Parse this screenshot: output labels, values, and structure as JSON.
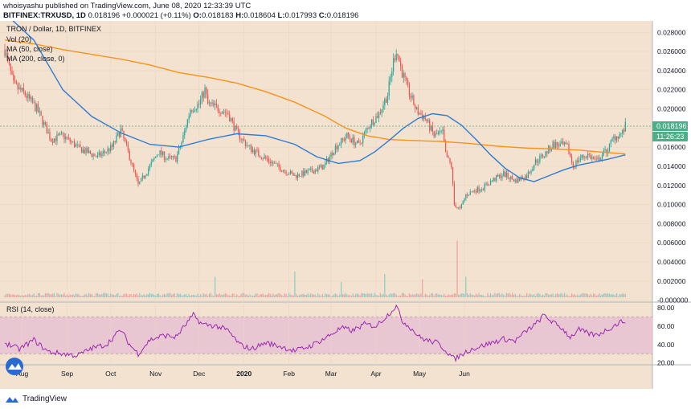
{
  "header": {
    "published_line": "whoisyashu published on TradingView.com, June 08, 2020 12:33:39 UTC",
    "symbol": "BITFINEX:TRXUSD, 1D",
    "last": "0.018196",
    "change": "+0.000021 (+0.11%)",
    "open_label": "O:",
    "open": "0.018183",
    "high_label": "H:",
    "high": "0.018604",
    "low_label": "L:",
    "low": "0.017993",
    "close_label": "C:",
    "close": "0.018196"
  },
  "legend": {
    "title": "TRON / Dollar, 1D, BITFINEX",
    "vol": "Vol (20)",
    "ma50": "MA (50, close)",
    "ma200": "MA (200, close, 0)"
  },
  "rsi_legend": "RSI (14, close)",
  "price_tag": "0.018196",
  "time_tag": "11:26:23",
  "footer": {
    "brand": "TradingView"
  },
  "colors": {
    "background": "#f3e2cf",
    "up": "#26a69a",
    "down": "#ef5350",
    "ma50": "#2e7bd4",
    "ma200": "#f7931a",
    "rsi_line": "#9c27b0",
    "rsi_band": "#e8c7d3",
    "price_tag": "#4caf8a"
  },
  "chart_data": [
    {
      "type": "candlestick",
      "title": "TRON / Dollar, 1D, BITFINEX",
      "x_tick_labels": [
        "Aug",
        "Sep",
        "Oct",
        "Nov",
        "Dec",
        "2020",
        "Feb",
        "Mar",
        "Apr",
        "May",
        "Jun"
      ],
      "y_tick_labels": [
        "0.028000",
        "0.026000",
        "0.024000",
        "0.022000",
        "0.020000",
        "0.018000",
        "0.016000",
        "0.014000",
        "0.012000",
        "0.010000",
        "0.008000",
        "0.006000",
        "0.004000",
        "0.002000",
        "-0.000000"
      ],
      "ylim": [
        -0.0002,
        0.0292
      ],
      "price_path": [
        [
          0,
          0.0262
        ],
        [
          6,
          0.0225
        ],
        [
          14,
          0.0215
        ],
        [
          22,
          0.02
        ],
        [
          32,
          0.0168
        ],
        [
          40,
          0.0172
        ],
        [
          52,
          0.0158
        ],
        [
          64,
          0.015
        ],
        [
          74,
          0.016
        ],
        [
          80,
          0.0178
        ],
        [
          86,
          0.015
        ],
        [
          92,
          0.012
        ],
        [
          100,
          0.014
        ],
        [
          106,
          0.0155
        ],
        [
          112,
          0.0148
        ],
        [
          118,
          0.0148
        ],
        [
          122,
          0.0165
        ],
        [
          128,
          0.02
        ],
        [
          134,
          0.0205
        ],
        [
          138,
          0.022
        ],
        [
          140,
          0.0205
        ],
        [
          148,
          0.02
        ],
        [
          154,
          0.0195
        ],
        [
          160,
          0.0175
        ],
        [
          168,
          0.016
        ],
        [
          178,
          0.015
        ],
        [
          190,
          0.0138
        ],
        [
          200,
          0.013
        ],
        [
          212,
          0.0135
        ],
        [
          220,
          0.014
        ],
        [
          228,
          0.016
        ],
        [
          236,
          0.0172
        ],
        [
          244,
          0.0162
        ],
        [
          252,
          0.0185
        ],
        [
          258,
          0.0195
        ],
        [
          264,
          0.0215
        ],
        [
          268,
          0.025
        ],
        [
          270,
          0.0262
        ],
        [
          274,
          0.0238
        ],
        [
          278,
          0.022
        ],
        [
          284,
          0.0198
        ],
        [
          290,
          0.019
        ],
        [
          296,
          0.0172
        ],
        [
          302,
          0.0175
        ],
        [
          304,
          0.0152
        ],
        [
          308,
          0.014
        ],
        [
          310,
          0.01
        ],
        [
          314,
          0.0095
        ],
        [
          318,
          0.011
        ],
        [
          324,
          0.0115
        ],
        [
          330,
          0.0118
        ],
        [
          336,
          0.0125
        ],
        [
          344,
          0.0132
        ],
        [
          352,
          0.0125
        ],
        [
          360,
          0.013
        ],
        [
          366,
          0.0145
        ],
        [
          372,
          0.0152
        ],
        [
          378,
          0.0163
        ],
        [
          384,
          0.0162
        ],
        [
          388,
          0.016
        ],
        [
          392,
          0.014
        ],
        [
          396,
          0.0148
        ],
        [
          402,
          0.0152
        ],
        [
          408,
          0.0145
        ],
        [
          412,
          0.0152
        ],
        [
          416,
          0.0158
        ],
        [
          420,
          0.017
        ],
        [
          426,
          0.0175
        ],
        [
          428,
          0.0182
        ]
      ],
      "ma50": [
        [
          0,
          0.03
        ],
        [
          20,
          0.0272
        ],
        [
          40,
          0.022
        ],
        [
          60,
          0.0192
        ],
        [
          80,
          0.0175
        ],
        [
          100,
          0.0163
        ],
        [
          120,
          0.016
        ],
        [
          140,
          0.0168
        ],
        [
          160,
          0.0174
        ],
        [
          180,
          0.0172
        ],
        [
          200,
          0.0163
        ],
        [
          215,
          0.015
        ],
        [
          230,
          0.0143
        ],
        [
          245,
          0.0146
        ],
        [
          255,
          0.0155
        ],
        [
          265,
          0.0167
        ],
        [
          275,
          0.018
        ],
        [
          285,
          0.019
        ],
        [
          295,
          0.0195
        ],
        [
          305,
          0.0193
        ],
        [
          315,
          0.0183
        ],
        [
          325,
          0.0168
        ],
        [
          335,
          0.0152
        ],
        [
          345,
          0.0138
        ],
        [
          355,
          0.0128
        ],
        [
          365,
          0.0124
        ],
        [
          375,
          0.013
        ],
        [
          385,
          0.0136
        ],
        [
          395,
          0.0141
        ],
        [
          405,
          0.0144
        ],
        [
          415,
          0.0147
        ],
        [
          428,
          0.0152
        ]
      ],
      "ma200": [
        [
          0,
          0.0272
        ],
        [
          20,
          0.0268
        ],
        [
          40,
          0.0262
        ],
        [
          60,
          0.0257
        ],
        [
          80,
          0.0252
        ],
        [
          100,
          0.0246
        ],
        [
          120,
          0.0238
        ],
        [
          140,
          0.0233
        ],
        [
          160,
          0.0227
        ],
        [
          180,
          0.0218
        ],
        [
          200,
          0.0207
        ],
        [
          220,
          0.0193
        ],
        [
          235,
          0.018
        ],
        [
          250,
          0.0172
        ],
        [
          265,
          0.0168
        ],
        [
          280,
          0.0167
        ],
        [
          300,
          0.0166
        ],
        [
          320,
          0.0164
        ],
        [
          340,
          0.0161
        ],
        [
          360,
          0.0159
        ],
        [
          380,
          0.0158
        ],
        [
          395,
          0.0157
        ],
        [
          410,
          0.0155
        ],
        [
          428,
          0.0153
        ]
      ]
    },
    {
      "type": "line",
      "title": "RSI (14, close)",
      "y_tick_labels": [
        "80.00",
        "60.00",
        "40.00",
        "20.00"
      ],
      "ylim": [
        18,
        86
      ],
      "band": [
        30,
        70
      ],
      "values": [
        [
          0,
          42
        ],
        [
          10,
          35
        ],
        [
          20,
          45
        ],
        [
          30,
          32
        ],
        [
          40,
          30
        ],
        [
          50,
          28
        ],
        [
          60,
          36
        ],
        [
          70,
          40
        ],
        [
          80,
          56
        ],
        [
          86,
          40
        ],
        [
          92,
          30
        ],
        [
          100,
          45
        ],
        [
          110,
          50
        ],
        [
          118,
          48
        ],
        [
          124,
          60
        ],
        [
          130,
          72
        ],
        [
          136,
          62
        ],
        [
          146,
          60
        ],
        [
          154,
          55
        ],
        [
          162,
          40
        ],
        [
          170,
          35
        ],
        [
          180,
          42
        ],
        [
          190,
          38
        ],
        [
          200,
          33
        ],
        [
          210,
          38
        ],
        [
          220,
          46
        ],
        [
          232,
          58
        ],
        [
          240,
          55
        ],
        [
          248,
          62
        ],
        [
          256,
          60
        ],
        [
          264,
          72
        ],
        [
          270,
          82
        ],
        [
          274,
          66
        ],
        [
          280,
          58
        ],
        [
          286,
          48
        ],
        [
          292,
          44
        ],
        [
          298,
          42
        ],
        [
          304,
          34
        ],
        [
          310,
          24
        ],
        [
          314,
          28
        ],
        [
          320,
          34
        ],
        [
          328,
          38
        ],
        [
          336,
          42
        ],
        [
          344,
          46
        ],
        [
          352,
          44
        ],
        [
          360,
          55
        ],
        [
          366,
          62
        ],
        [
          372,
          72
        ],
        [
          378,
          64
        ],
        [
          384,
          58
        ],
        [
          390,
          48
        ],
        [
          396,
          56
        ],
        [
          402,
          52
        ],
        [
          408,
          50
        ],
        [
          414,
          55
        ],
        [
          420,
          60
        ],
        [
          424,
          64
        ],
        [
          428,
          66
        ]
      ]
    },
    {
      "type": "bar",
      "title": "Vol (20)",
      "spikes": [
        [
          145,
          8
        ],
        [
          200,
          10
        ],
        [
          232,
          6
        ],
        [
          262,
          9
        ],
        [
          288,
          7
        ],
        [
          312,
          22
        ],
        [
          318,
          8
        ]
      ]
    }
  ]
}
